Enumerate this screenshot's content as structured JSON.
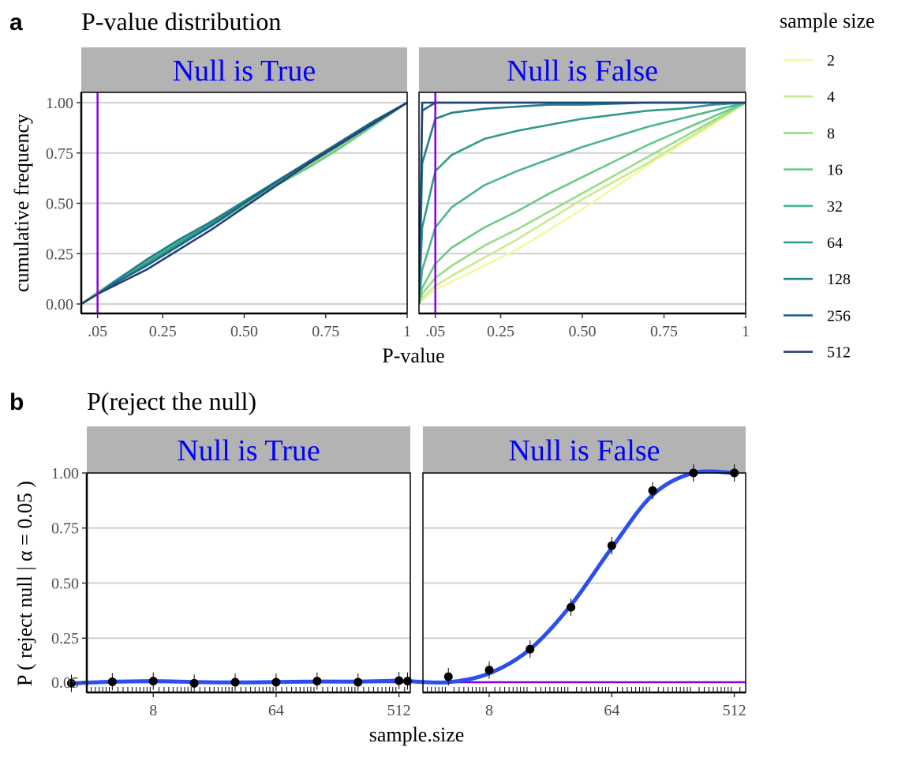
{
  "panel_a": {
    "tag": "a",
    "title": "P-value distribution",
    "facets": [
      "Null is True",
      "Null is False"
    ],
    "ylabel": "cumulative frequency",
    "xlabel": "P-value",
    "y_ticks": [
      "0.00",
      "0.25",
      "0.50",
      "0.75",
      "1.00"
    ],
    "x_ticks": [
      ".05",
      "0.25",
      "0.50",
      "0.75",
      "1"
    ]
  },
  "panel_b": {
    "tag": "b",
    "title": "P(reject the null)",
    "facets": [
      "Null is True",
      "Null is False"
    ],
    "ylabel": "P ( reject null | α  = 0.05 )",
    "xlabel": "sample.size",
    "y_ticks": [
      "0.05",
      "0.25",
      "0.50",
      "0.75",
      "1.00"
    ],
    "x_ticks": [
      "8",
      "64",
      "512"
    ]
  },
  "legend": {
    "title": "sample size",
    "entries": [
      "2",
      "4",
      "8",
      "16",
      "32",
      "64",
      "128",
      "256",
      "512"
    ],
    "colors": [
      "#f2f9a0",
      "#c8ec8a",
      "#98dd86",
      "#6bcb86",
      "#49b68a",
      "#2e9c8a",
      "#24808a",
      "#1f6484",
      "#23417a"
    ]
  },
  "colors": {
    "strip_bg": "#b3b3b3",
    "strip_text": "#0000ff",
    "alpha_line": "#8a00e0",
    "fit_line": "#2a4ff0",
    "grid": "#d0d0d0",
    "points": "#000000"
  },
  "chart_data": [
    {
      "type": "line",
      "title": "P-value distribution",
      "facet": "Null is True",
      "xlabel": "P-value",
      "ylabel": "cumulative frequency",
      "xlim": [
        0,
        1
      ],
      "ylim": [
        0,
        1
      ],
      "grid": true,
      "vline": 0.05,
      "legend_title": "sample size",
      "legend_position": "right",
      "x": [
        0,
        0.05,
        0.1,
        0.2,
        0.3,
        0.4,
        0.5,
        0.6,
        0.7,
        0.8,
        0.9,
        1.0
      ],
      "series": [
        {
          "name": "2",
          "values": [
            0,
            0.05,
            0.1,
            0.2,
            0.3,
            0.4,
            0.5,
            0.6,
            0.7,
            0.8,
            0.9,
            1.0
          ]
        },
        {
          "name": "4",
          "values": [
            0,
            0.05,
            0.11,
            0.21,
            0.31,
            0.4,
            0.5,
            0.6,
            0.7,
            0.8,
            0.9,
            1.0
          ]
        },
        {
          "name": "8",
          "values": [
            0,
            0.06,
            0.11,
            0.2,
            0.3,
            0.41,
            0.51,
            0.6,
            0.69,
            0.79,
            0.9,
            1.0
          ]
        },
        {
          "name": "16",
          "values": [
            0,
            0.05,
            0.1,
            0.2,
            0.29,
            0.39,
            0.49,
            0.59,
            0.68,
            0.78,
            0.89,
            1.0
          ]
        },
        {
          "name": "32",
          "values": [
            0,
            0.05,
            0.1,
            0.21,
            0.31,
            0.41,
            0.51,
            0.61,
            0.7,
            0.81,
            0.91,
            1.0
          ]
        },
        {
          "name": "64",
          "values": [
            0,
            0.05,
            0.1,
            0.2,
            0.3,
            0.4,
            0.5,
            0.6,
            0.7,
            0.8,
            0.9,
            1.0
          ]
        },
        {
          "name": "128",
          "values": [
            0,
            0.05,
            0.11,
            0.22,
            0.32,
            0.41,
            0.51,
            0.61,
            0.71,
            0.81,
            0.91,
            1.0
          ]
        },
        {
          "name": "256",
          "values": [
            0,
            0.05,
            0.1,
            0.19,
            0.29,
            0.39,
            0.5,
            0.61,
            0.71,
            0.81,
            0.91,
            1.0
          ]
        },
        {
          "name": "512",
          "values": [
            0,
            0.05,
            0.09,
            0.17,
            0.27,
            0.37,
            0.48,
            0.59,
            0.7,
            0.8,
            0.9,
            1.0
          ]
        }
      ]
    },
    {
      "type": "line",
      "title": "P-value distribution",
      "facet": "Null is False",
      "xlabel": "P-value",
      "ylabel": "cumulative frequency",
      "xlim": [
        0,
        1
      ],
      "ylim": [
        0,
        1
      ],
      "grid": true,
      "vline": 0.05,
      "x": [
        0,
        0.01,
        0.05,
        0.1,
        0.2,
        0.3,
        0.4,
        0.5,
        0.6,
        0.7,
        0.8,
        0.9,
        1.0
      ],
      "series": [
        {
          "name": "2",
          "values": [
            0,
            0.02,
            0.07,
            0.11,
            0.19,
            0.27,
            0.37,
            0.47,
            0.58,
            0.69,
            0.79,
            0.89,
            1.0
          ]
        },
        {
          "name": "4",
          "values": [
            0,
            0.03,
            0.09,
            0.14,
            0.23,
            0.32,
            0.42,
            0.52,
            0.61,
            0.7,
            0.8,
            0.9,
            1.0
          ]
        },
        {
          "name": "8",
          "values": [
            0,
            0.05,
            0.13,
            0.19,
            0.29,
            0.37,
            0.46,
            0.55,
            0.64,
            0.73,
            0.82,
            0.91,
            1.0
          ]
        },
        {
          "name": "16",
          "values": [
            0,
            0.08,
            0.2,
            0.28,
            0.38,
            0.46,
            0.55,
            0.63,
            0.71,
            0.79,
            0.86,
            0.93,
            1.0
          ]
        },
        {
          "name": "32",
          "values": [
            0,
            0.17,
            0.38,
            0.48,
            0.59,
            0.66,
            0.72,
            0.78,
            0.83,
            0.88,
            0.92,
            0.96,
            1.0
          ]
        },
        {
          "name": "64",
          "values": [
            0,
            0.38,
            0.66,
            0.74,
            0.82,
            0.86,
            0.89,
            0.92,
            0.94,
            0.96,
            0.97,
            0.99,
            1.0
          ]
        },
        {
          "name": "128",
          "values": [
            0,
            0.7,
            0.92,
            0.95,
            0.97,
            0.98,
            0.99,
            0.99,
            0.995,
            1.0,
            1.0,
            1.0,
            1.0
          ]
        },
        {
          "name": "256",
          "values": [
            0,
            0.96,
            1.0,
            1.0,
            1.0,
            1.0,
            1.0,
            1.0,
            1.0,
            1.0,
            1.0,
            1.0,
            1.0
          ]
        },
        {
          "name": "512",
          "values": [
            0,
            1.0,
            1.0,
            1.0,
            1.0,
            1.0,
            1.0,
            1.0,
            1.0,
            1.0,
            1.0,
            1.0,
            1.0
          ]
        }
      ]
    },
    {
      "type": "scatter",
      "title": "P(reject the null)",
      "facet": "Null is True",
      "xlabel": "sample.size",
      "ylabel": "P ( reject null | α  = 0.05 )",
      "x_scale": "log2",
      "x_ticks": [
        8,
        64,
        512
      ],
      "ylim": [
        0,
        1
      ],
      "hline": 0.05,
      "grid": true,
      "x": [
        2,
        4,
        8,
        16,
        32,
        64,
        128,
        256,
        512
      ],
      "series": [
        {
          "values": [
            0.045,
            0.052,
            0.055,
            0.045,
            0.05,
            0.05,
            0.055,
            0.05,
            0.057
          ]
        }
      ],
      "fit": [
        0.045,
        0.052,
        0.055,
        0.051,
        0.049,
        0.051,
        0.053,
        0.053,
        0.057
      ]
    },
    {
      "type": "scatter",
      "title": "P(reject the null)",
      "facet": "Null is False",
      "xlabel": "sample.size",
      "ylabel": "P ( reject null | α  = 0.05 )",
      "x_scale": "log2",
      "x_ticks": [
        8,
        64,
        512
      ],
      "ylim": [
        0,
        1
      ],
      "hline": 0.05,
      "grid": true,
      "x": [
        2,
        4,
        8,
        16,
        32,
        64,
        128,
        256,
        512
      ],
      "series": [
        {
          "values": [
            0.055,
            0.075,
            0.105,
            0.2,
            0.39,
            0.67,
            0.92,
            1.0,
            1.0
          ]
        }
      ],
      "fit": [
        0.055,
        0.05,
        0.09,
        0.2,
        0.4,
        0.66,
        0.9,
        1.0,
        1.0
      ]
    }
  ]
}
